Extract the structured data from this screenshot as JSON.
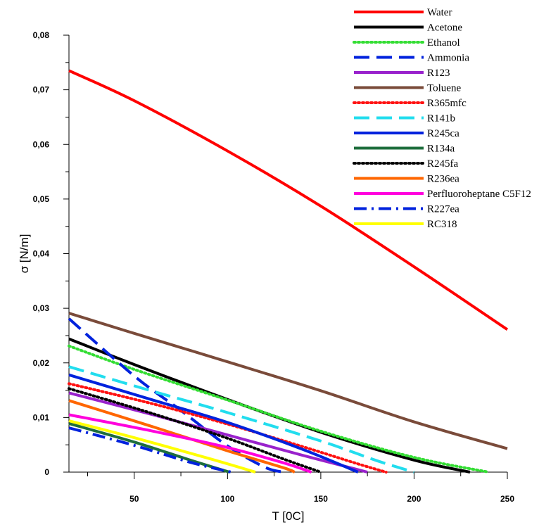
{
  "chart_data": {
    "type": "line",
    "xlabel": "T [0C]",
    "ylabel": "σ [N/m]",
    "xlim": [
      15,
      250
    ],
    "ylim": [
      0,
      0.08
    ],
    "x_ticks": [
      50,
      100,
      150,
      200,
      250
    ],
    "x_tick_labels": [
      "50",
      "100",
      "150",
      "200",
      "250"
    ],
    "y_ticks": [
      0,
      0.01,
      0.02,
      0.03,
      0.04,
      0.05,
      0.06,
      0.07,
      0.08
    ],
    "y_tick_labels": [
      "0",
      "0,01",
      "0,02",
      "0,03",
      "0,04",
      "0,05",
      "0,06",
      "0,07",
      "0,08"
    ],
    "grid": false,
    "legend_position": "top-right",
    "series": [
      {
        "name": "Water",
        "color": "#ff0000",
        "style": "solid",
        "points": [
          [
            15,
            0.0735
          ],
          [
            50,
            0.068
          ],
          [
            100,
            0.0588
          ],
          [
            150,
            0.0487
          ],
          [
            200,
            0.0376
          ],
          [
            250,
            0.0261
          ]
        ]
      },
      {
        "name": "Acetone",
        "color": "#000000",
        "style": "solid",
        "points": [
          [
            15,
            0.0244
          ],
          [
            50,
            0.0197
          ],
          [
            100,
            0.0133
          ],
          [
            150,
            0.0073
          ],
          [
            200,
            0.0022
          ],
          [
            230,
            0.0
          ]
        ]
      },
      {
        "name": "Ethanol",
        "color": "#33dd33",
        "style": "dotted",
        "points": [
          [
            15,
            0.0231
          ],
          [
            50,
            0.0188
          ],
          [
            100,
            0.0132
          ],
          [
            150,
            0.0075
          ],
          [
            200,
            0.0027
          ],
          [
            240,
            0.0
          ]
        ]
      },
      {
        "name": "Ammonia",
        "color": "#0022dd",
        "style": "dashed",
        "points": [
          [
            15,
            0.0281
          ],
          [
            50,
            0.0176
          ],
          [
            75,
            0.0113
          ],
          [
            100,
            0.0048
          ],
          [
            120,
            0.0009
          ],
          [
            130,
            0.0
          ]
        ]
      },
      {
        "name": "R123",
        "color": "#9922cc",
        "style": "solid",
        "points": [
          [
            15,
            0.0145
          ],
          [
            60,
            0.0105
          ],
          [
            100,
            0.0068
          ],
          [
            140,
            0.0031
          ],
          [
            175,
            0.0
          ]
        ]
      },
      {
        "name": "Toluene",
        "color": "#7a4b3a",
        "style": "solid",
        "points": [
          [
            15,
            0.0291
          ],
          [
            50,
            0.0254
          ],
          [
            100,
            0.0202
          ],
          [
            150,
            0.0149
          ],
          [
            200,
            0.0092
          ],
          [
            250,
            0.0043
          ]
        ]
      },
      {
        "name": "R365mfc",
        "color": "#ff1111",
        "style": "dotted",
        "points": [
          [
            15,
            0.0162
          ],
          [
            60,
            0.0125
          ],
          [
            100,
            0.0088
          ],
          [
            140,
            0.0047
          ],
          [
            170,
            0.0015
          ],
          [
            185,
            0.0
          ]
        ]
      },
      {
        "name": "R141b",
        "color": "#22ddee",
        "style": "dashed",
        "points": [
          [
            15,
            0.0193
          ],
          [
            60,
            0.0148
          ],
          [
            100,
            0.0109
          ],
          [
            150,
            0.0057
          ],
          [
            180,
            0.0021
          ],
          [
            200,
            0.0
          ]
        ]
      },
      {
        "name": "R245ca",
        "color": "#0022dd",
        "style": "solid",
        "points": [
          [
            15,
            0.0178
          ],
          [
            60,
            0.0132
          ],
          [
            100,
            0.0091
          ],
          [
            140,
            0.0042
          ],
          [
            170,
            0.0
          ]
        ]
      },
      {
        "name": "R134a",
        "color": "#1e6e3c",
        "style": "solid",
        "points": [
          [
            15,
            0.0089
          ],
          [
            50,
            0.0055
          ],
          [
            80,
            0.0022
          ],
          [
            101,
            0.0
          ]
        ]
      },
      {
        "name": "R245fa",
        "color": "#000000",
        "style": "dotted",
        "points": [
          [
            15,
            0.0153
          ],
          [
            60,
            0.0107
          ],
          [
            100,
            0.0062
          ],
          [
            130,
            0.0024
          ],
          [
            150,
            0.0
          ]
        ]
      },
      {
        "name": "R236ea",
        "color": "#ff6600",
        "style": "solid",
        "points": [
          [
            15,
            0.0131
          ],
          [
            60,
            0.0083
          ],
          [
            100,
            0.0039
          ],
          [
            130,
            0.0008
          ],
          [
            136,
            0.0
          ]
        ]
      },
      {
        "name": "Perfluoroheptane C5F12",
        "color": "#ff00dd",
        "style": "solid",
        "points": [
          [
            15,
            0.0105
          ],
          [
            60,
            0.0075
          ],
          [
            100,
            0.0045
          ],
          [
            130,
            0.0017
          ],
          [
            145,
            0.0
          ]
        ]
      },
      {
        "name": "R227ea",
        "color": "#0022dd",
        "style": "dashdot",
        "points": [
          [
            15,
            0.0081
          ],
          [
            50,
            0.0049
          ],
          [
            80,
            0.0018
          ],
          [
            102,
            0.0
          ]
        ]
      },
      {
        "name": "RC318",
        "color": "#ffff00",
        "style": "solid",
        "points": [
          [
            15,
            0.0094
          ],
          [
            50,
            0.0063
          ],
          [
            90,
            0.0025
          ],
          [
            115,
            0.0
          ]
        ]
      }
    ]
  }
}
